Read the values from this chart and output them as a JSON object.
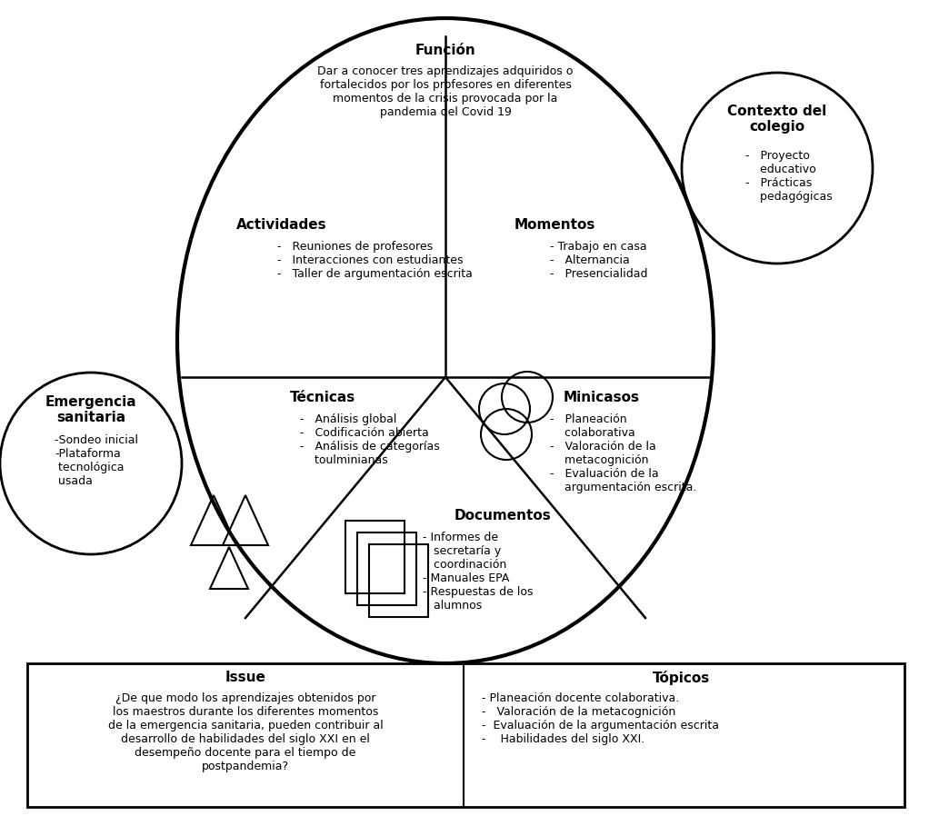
{
  "background_color": "#ffffff",
  "funcion_title": "Función",
  "funcion_text": "Dar a conocer tres aprendizajes adquiridos o\nfortalecidos por los profesores en diferentes\nmomentos de la crisis provocada por la\npandemia del Covid 19",
  "actividades_title": "Actividades",
  "actividades_text": "-   Reuniones de profesores\n-   Interacciones con estudiantes\n-   Taller de argumentación escrita",
  "momentos_title": "Momentos",
  "momentos_text": "- Trabajo en casa\n-   Alternancia\n-   Presencialidad",
  "tecnicas_title": "Técnicas",
  "tecnicas_text": "-   Análisis global\n-   Codificación abierta\n-   Análisis de categorías\n    toulminianas",
  "minicasos_title": "Minicasos",
  "minicasos_text": "-   Planeación\n    colaborativa\n-   Valoración de la\n    metacognición\n-   Evaluación de la\n    argumentación escrita.",
  "documentos_title": "Documentos",
  "documentos_text": "- Informes de\n   secretaría y\n   coordinación\n- Manuales EPA\n- Respuestas de los\n   alumnos",
  "contexto_title": "Contexto del\ncolegio",
  "contexto_text": "-   Proyecto\n    educativo\n-   Prácticas\n    pedagógicas",
  "emergencia_title": "Emergencia\nsanitaria",
  "emergencia_text": "-Sondeo inicial\n-Plataforma\n tecnológica\n usada",
  "issue_title": "Issue",
  "issue_text": "¿De que modo los aprendizajes obtenidos por\nlos maestros durante los diferentes momentos\nde la emergencia sanitaria, pueden contribuir al\ndesarrollo de habilidades del siglo XXI en el\ndesempeño docente para el tiempo de\npostpandemia?",
  "topicos_title": "Tópicos",
  "topicos_text": "- Planeación docente colaborativa.\n-   Valoración de la metacognición\n-  Evaluación de la argumentación escrita\n-    Habilidades del siglo XXI."
}
